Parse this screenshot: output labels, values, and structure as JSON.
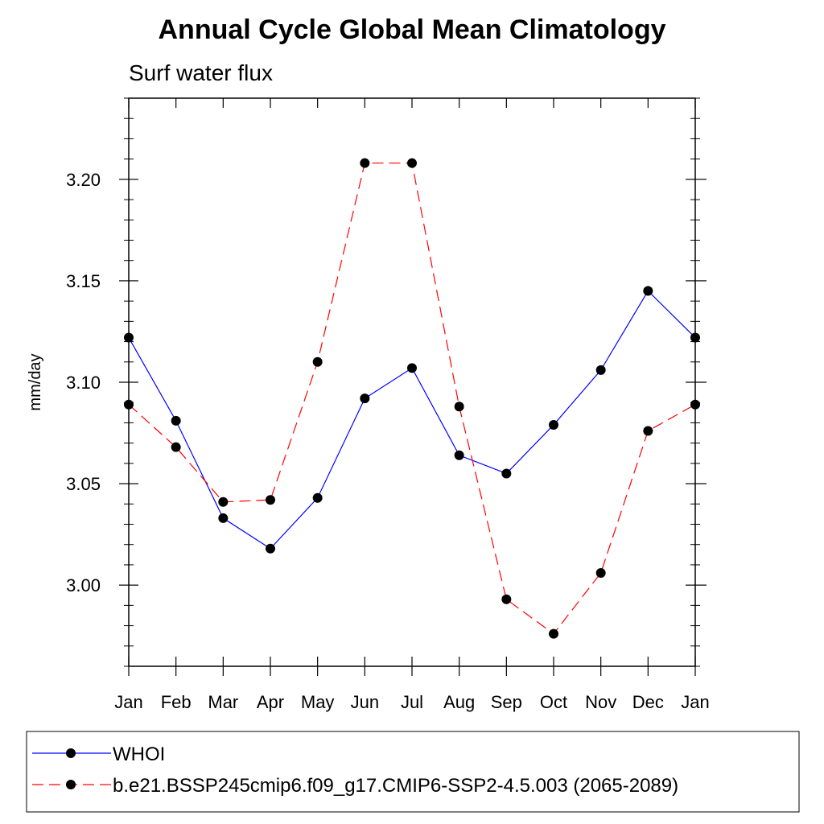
{
  "chart_data": {
    "type": "line",
    "title": "Annual Cycle Global Mean Climatology",
    "subtitle": "Surf water flux",
    "xlabel": "",
    "ylabel": "mm/day",
    "categories": [
      "Jan",
      "Feb",
      "Mar",
      "Apr",
      "May",
      "Jun",
      "Jul",
      "Aug",
      "Sep",
      "Oct",
      "Nov",
      "Dec",
      "Jan"
    ],
    "ylim": [
      2.96,
      3.24
    ],
    "yticks": [
      "3.00",
      "3.05",
      "3.10",
      "3.15",
      "3.20"
    ],
    "legend_position": "bottom",
    "series": [
      {
        "name": "WHOI",
        "color": "#0000ff",
        "dash": "solid",
        "marker": "filled-circle",
        "values": [
          3.122,
          3.081,
          3.033,
          3.018,
          3.043,
          3.092,
          3.107,
          3.064,
          3.055,
          3.079,
          3.106,
          3.145,
          3.122
        ]
      },
      {
        "name": "b.e21.BSSP245cmip6.f09_g17.CMIP6-SSP2-4.5.003 (2065-2089)",
        "color": "#ff0000",
        "dash": "dashed",
        "marker": "filled-circle",
        "values": [
          3.089,
          3.068,
          3.041,
          3.042,
          3.11,
          3.208,
          3.208,
          3.088,
          2.993,
          2.976,
          3.006,
          3.076,
          3.089
        ]
      }
    ]
  }
}
